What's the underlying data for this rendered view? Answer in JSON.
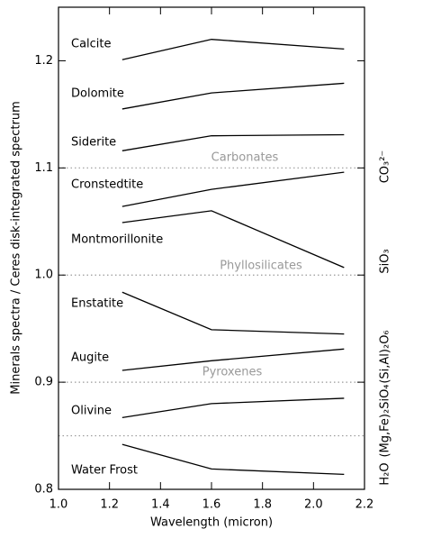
{
  "chart_data": {
    "type": "line",
    "xlabel": "Wavelength (micron)",
    "ylabel": "Minerals spectra / Ceres disk-integrated spectrum",
    "x": [
      1.25,
      1.6,
      2.12
    ],
    "series": [
      {
        "name": "Calcite",
        "color": "#000000",
        "values": [
          1.201,
          1.22,
          1.211
        ]
      },
      {
        "name": "Dolomite",
        "color": "#000000",
        "values": [
          1.155,
          1.17,
          1.179
        ]
      },
      {
        "name": "Siderite",
        "color": "#000000",
        "values": [
          1.116,
          1.13,
          1.131
        ]
      },
      {
        "name": "Cronstedtite",
        "color": "#000000",
        "values": [
          1.064,
          1.08,
          1.096
        ]
      },
      {
        "name": "Montmorillonite",
        "color": "#000000",
        "values": [
          1.049,
          1.06,
          1.007
        ]
      },
      {
        "name": "Enstatite",
        "color": "#000000",
        "values": [
          0.984,
          0.949,
          0.945
        ]
      },
      {
        "name": "Augite",
        "color": "#000000",
        "values": [
          0.911,
          0.92,
          0.931
        ]
      },
      {
        "name": "Olivine",
        "color": "#000000",
        "values": [
          0.867,
          0.88,
          0.885
        ]
      },
      {
        "name": "Water Frost",
        "color": "#000000",
        "values": [
          0.842,
          0.819,
          0.814
        ]
      }
    ],
    "xlim": [
      1.0,
      2.2
    ],
    "ylim": [
      0.8,
      1.25
    ],
    "xticks": [
      {
        "value": 1.0,
        "label": "1.0"
      },
      1.2,
      1.4,
      1.6,
      1.8,
      {
        "value": 2.0,
        "label": "2.0"
      },
      2.2
    ],
    "yticks": [
      0.8,
      0.9,
      {
        "value": 1.0,
        "label": "1.0"
      },
      1.1,
      1.2
    ],
    "reference_lines": [
      1.1,
      1.0,
      0.9,
      0.85
    ],
    "reference_color": "#999999",
    "group_labels": [
      "Carbonates",
      "Phyllosilicates",
      "Pyroxenes"
    ],
    "formula_labels": [
      "CO₃²⁻",
      "SiO₃",
      "(Si,Al)₂O₆",
      "(Mg,Fe)₂SiO₄",
      "H₂O"
    ]
  }
}
